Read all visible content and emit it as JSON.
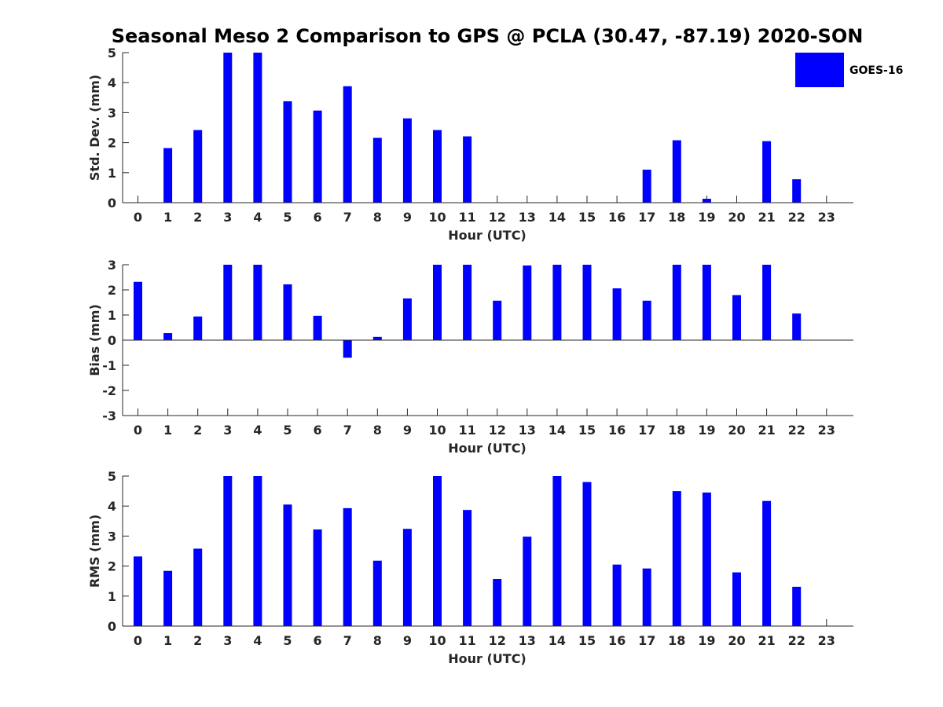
{
  "title": "Seasonal Meso 2 Comparison to GPS @ PCLA (30.47, -87.19) 2020-SON",
  "colors": {
    "bar": "#0000FF",
    "axis": "#262626"
  },
  "legend": {
    "label": "GOES-16",
    "placement": "top-right"
  },
  "chart_data": [
    {
      "type": "bar",
      "xlabel": "Hour (UTC)",
      "ylabel": "Std. Dev. (mm)",
      "ylim": [
        0,
        5
      ],
      "yticks": [
        0,
        1,
        2,
        3,
        4,
        5
      ],
      "x": [
        0,
        1,
        2,
        3,
        4,
        5,
        6,
        7,
        8,
        9,
        10,
        11,
        12,
        13,
        14,
        15,
        16,
        17,
        18,
        19,
        20,
        21,
        22,
        23
      ],
      "series": [
        {
          "name": "GOES-16",
          "values": [
            0,
            1.82,
            2.42,
            5.0,
            5.0,
            3.38,
            3.07,
            3.88,
            2.16,
            2.81,
            2.42,
            2.21,
            0,
            0,
            0,
            0,
            0,
            1.1,
            2.08,
            0.13,
            0,
            2.05,
            0.78,
            0
          ]
        }
      ]
    },
    {
      "type": "bar",
      "xlabel": "Hour (UTC)",
      "ylabel": "Bias (mm)",
      "ylim": [
        -3,
        3
      ],
      "yticks": [
        -3,
        -2,
        -1,
        0,
        1,
        2,
        3
      ],
      "x": [
        0,
        1,
        2,
        3,
        4,
        5,
        6,
        7,
        8,
        9,
        10,
        11,
        12,
        13,
        14,
        15,
        16,
        17,
        18,
        19,
        20,
        21,
        22,
        23
      ],
      "series": [
        {
          "name": "GOES-16",
          "values": [
            2.32,
            0.28,
            0.94,
            3.0,
            3.0,
            2.22,
            0.97,
            -0.7,
            0.13,
            1.66,
            3.0,
            3.0,
            1.57,
            2.97,
            3.0,
            3.0,
            2.06,
            1.57,
            3.0,
            3.0,
            1.79,
            3.0,
            1.06,
            0
          ]
        }
      ]
    },
    {
      "type": "bar",
      "xlabel": "Hour (UTC)",
      "ylabel": "RMS (mm)",
      "ylim": [
        0,
        5
      ],
      "yticks": [
        0,
        1,
        2,
        3,
        4,
        5
      ],
      "x": [
        0,
        1,
        2,
        3,
        4,
        5,
        6,
        7,
        8,
        9,
        10,
        11,
        12,
        13,
        14,
        15,
        16,
        17,
        18,
        19,
        20,
        21,
        22,
        23
      ],
      "series": [
        {
          "name": "GOES-16",
          "values": [
            2.32,
            1.84,
            2.58,
            5.0,
            5.0,
            4.05,
            3.22,
            3.93,
            2.18,
            3.24,
            5.0,
            3.87,
            1.57,
            2.98,
            5.0,
            4.8,
            2.05,
            1.92,
            4.5,
            4.45,
            1.79,
            4.17,
            1.31,
            0
          ]
        }
      ]
    }
  ]
}
